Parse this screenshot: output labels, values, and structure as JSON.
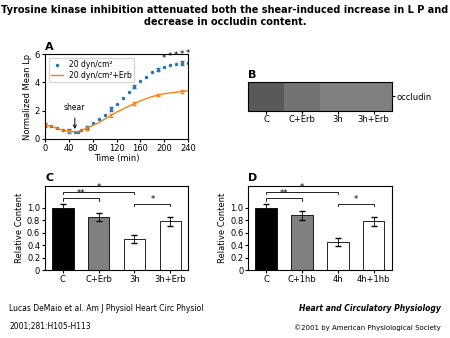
{
  "title": "Tyrosine kinase inhibition attenuated both the shear-induced increase in L P and decrease in occludin content.",
  "footer": [
    "Lucas DeMaio et al. Am J Physiol Heart Circ Physiol",
    "2001;281:H105-H113",
    "Heart and Circulatory Physiology",
    "©2001 by American Physiological Society"
  ],
  "chart_data": [
    {
      "type": "line",
      "title": "A",
      "xlabel": "Time (min)",
      "ylabel": "Normalized Mean Lp",
      "x": [
        0,
        10,
        20,
        30,
        40,
        50,
        55,
        60,
        70,
        80,
        90,
        100,
        110,
        120,
        130,
        140,
        150,
        160,
        170,
        180,
        190,
        200,
        210,
        220,
        230,
        240
      ],
      "series": [
        {
          "name": "20 dyn/cm²",
          "marker": "dot",
          "line_style": "none",
          "values": [
            1.0,
            0.9,
            0.75,
            0.6,
            0.55,
            0.5,
            0.52,
            0.6,
            0.8,
            1.1,
            1.4,
            1.7,
            2.1,
            2.5,
            2.9,
            3.3,
            3.7,
            4.1,
            4.4,
            4.7,
            4.9,
            5.1,
            5.2,
            5.3,
            5.35,
            5.4
          ],
          "errors": [
            0.13,
            null,
            null,
            null,
            0.13,
            null,
            null,
            null,
            0.13,
            null,
            null,
            null,
            0.13,
            null,
            null,
            null,
            0.13,
            null,
            null,
            null,
            0.13,
            null,
            null,
            null,
            0.13,
            null
          ]
        },
        {
          "name": "20 dyn/cm²+Erb",
          "marker": "none",
          "line_style": "solid",
          "values": [
            1.0,
            0.9,
            0.75,
            0.6,
            0.55,
            0.5,
            0.52,
            0.6,
            0.75,
            0.95,
            1.15,
            1.4,
            1.65,
            1.9,
            2.1,
            2.3,
            2.5,
            2.7,
            2.85,
            3.0,
            3.1,
            3.2,
            3.25,
            3.3,
            3.35,
            3.4
          ],
          "errors": [
            0.1,
            null,
            null,
            null,
            0.1,
            null,
            null,
            null,
            0.1,
            null,
            null,
            null,
            0.1,
            null,
            null,
            null,
            0.1,
            null,
            null,
            null,
            0.1,
            null,
            null,
            null,
            0.1,
            null
          ]
        }
      ],
      "xlim": [
        0,
        240
      ],
      "xticks": [
        0,
        40,
        80,
        120,
        160,
        200,
        240
      ],
      "ylim": [
        0,
        6
      ],
      "yticks": [
        0,
        2,
        4,
        6
      ],
      "legend": "upper left",
      "annotations": [
        {
          "text": "shear",
          "x": 50,
          "y": 0.5,
          "arrow": true
        },
        {
          "text": "*",
          "x": 200,
          "y": 5.1
        },
        {
          "text": "*",
          "x": 210,
          "y": 5.2
        },
        {
          "text": "*",
          "x": 220,
          "y": 5.3
        },
        {
          "text": "*",
          "x": 230,
          "y": 5.35
        },
        {
          "text": "*",
          "x": 240,
          "y": 5.4
        }
      ]
    },
    {
      "type": "heatmap",
      "title": "B",
      "categories": [
        "C",
        "C+Erb",
        "3h",
        "3h+Erb"
      ],
      "rows": [
        "occludin"
      ],
      "values": [
        [
          0.35,
          0.45,
          0.5,
          0.5
        ]
      ],
      "value_range": [
        0,
        1
      ]
    },
    {
      "type": "bar",
      "title": "C",
      "ylabel": "Relative Content",
      "categories": [
        "C",
        "C+Erb",
        "3h",
        "3h+Erb"
      ],
      "values": [
        1.0,
        0.85,
        0.5,
        0.78
      ],
      "errors": [
        0.05,
        0.07,
        0.06,
        0.07
      ],
      "colors": [
        "#000000",
        "#808080",
        "#ffffff",
        "#ffffff"
      ],
      "ylim": [
        0,
        1.35
      ],
      "yticks": [
        0,
        0.2,
        0.4,
        0.6,
        0.8,
        1.0
      ],
      "brackets": [
        {
          "from": "C",
          "to": "3h",
          "y": 1.25,
          "label": "*"
        },
        {
          "from": "C",
          "to": "C+Erb",
          "y": 1.15,
          "label": "**"
        },
        {
          "from": "3h",
          "to": "3h+Erb",
          "y": 1.06,
          "label": "*"
        }
      ]
    },
    {
      "type": "bar",
      "title": "D",
      "ylabel": "Relative Content",
      "categories": [
        "C",
        "C+1hb",
        "4h",
        "4h+1hb"
      ],
      "values": [
        1.0,
        0.88,
        0.45,
        0.78
      ],
      "errors": [
        0.05,
        0.07,
        0.06,
        0.07
      ],
      "colors": [
        "#000000",
        "#808080",
        "#ffffff",
        "#ffffff"
      ],
      "ylim": [
        0,
        1.35
      ],
      "yticks": [
        0,
        0.2,
        0.4,
        0.6,
        0.8,
        1.0
      ],
      "brackets": [
        {
          "from": "C",
          "to": "4h",
          "y": 1.25,
          "label": "*"
        },
        {
          "from": "C",
          "to": "C+1hb",
          "y": 1.15,
          "label": "**"
        },
        {
          "from": "4h",
          "to": "4h+1hb",
          "y": 1.06,
          "label": "*"
        }
      ]
    }
  ]
}
